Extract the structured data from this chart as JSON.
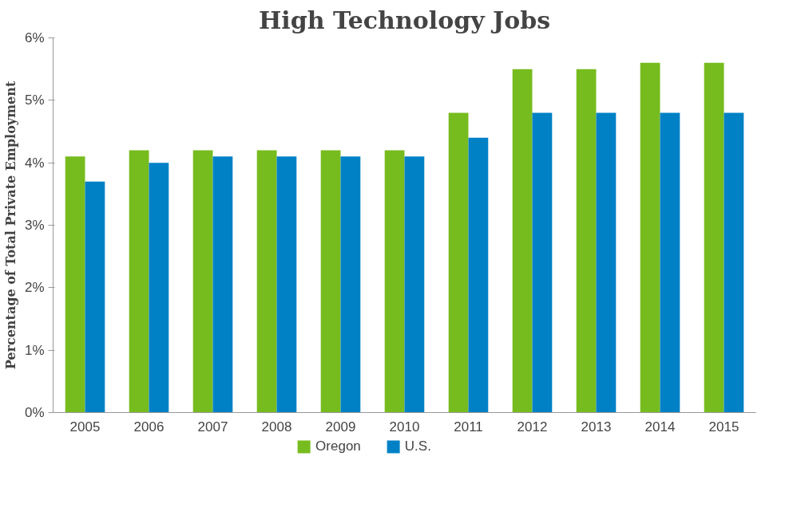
{
  "chart_data": {
    "type": "bar",
    "title": "High Technology Jobs",
    "ylabel": "Percentage of Total Private Employment",
    "categories": [
      "2005",
      "2006",
      "2007",
      "2008",
      "2009",
      "2010",
      "2011",
      "2012",
      "2013",
      "2014",
      "2015"
    ],
    "series": [
      {
        "name": "Oregon",
        "color": "#77bc1f",
        "values": [
          4.1,
          4.2,
          4.2,
          4.2,
          4.2,
          4.2,
          4.8,
          5.5,
          5.5,
          5.6,
          5.6
        ]
      },
      {
        "name": "U.S.",
        "color": "#0081c6",
        "values": [
          3.7,
          4.0,
          4.1,
          4.1,
          4.1,
          4.1,
          4.4,
          4.8,
          4.8,
          4.8,
          4.8
        ]
      }
    ],
    "ylim": [
      0,
      6
    ],
    "yticks": [
      {
        "value": 0,
        "label": "0%"
      },
      {
        "value": 1,
        "label": "1%"
      },
      {
        "value": 2,
        "label": "2%"
      },
      {
        "value": 3,
        "label": "3%"
      },
      {
        "value": 4,
        "label": "4%"
      },
      {
        "value": 5,
        "label": "5%"
      },
      {
        "value": 6,
        "label": "6%"
      }
    ],
    "grid": false,
    "legend": "bottom"
  }
}
